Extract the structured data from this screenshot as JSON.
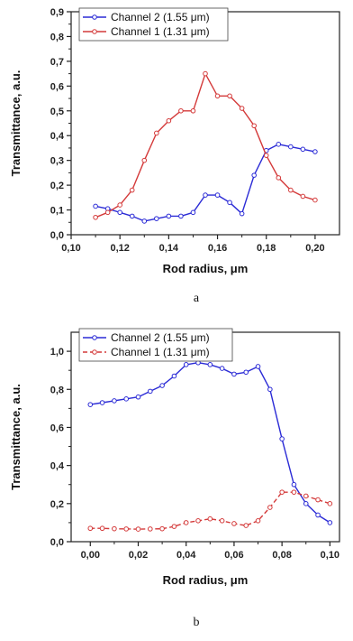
{
  "chart_data": [
    {
      "type": "line",
      "panel_label": "a",
      "xlabel": "Rod radius, μm",
      "ylabel": "Transmittance, a.u.",
      "xlim": [
        0.1,
        0.21
      ],
      "ylim": [
        0.0,
        0.9
      ],
      "xticks": [
        0.1,
        0.12,
        0.14,
        0.16,
        0.18,
        0.2
      ],
      "xtick_labels": [
        "0,10",
        "0,12",
        "0,14",
        "0,16",
        "0,18",
        "0,20"
      ],
      "yticks": [
        0.0,
        0.1,
        0.2,
        0.3,
        0.4,
        0.5,
        0.6,
        0.7,
        0.8,
        0.9
      ],
      "ytick_labels": [
        "0,0",
        "0,1",
        "0,2",
        "0,3",
        "0,4",
        "0,5",
        "0,6",
        "0,7",
        "0,8",
        "0,9"
      ],
      "grid": false,
      "legend": "top-left",
      "series": [
        {
          "name": "Channel 2 (1.55 μm)",
          "color": "#2b2bd6",
          "style": "solid",
          "x": [
            0.11,
            0.115,
            0.12,
            0.125,
            0.13,
            0.135,
            0.14,
            0.145,
            0.15,
            0.155,
            0.16,
            0.165,
            0.17,
            0.175,
            0.18,
            0.185,
            0.19,
            0.195,
            0.2
          ],
          "y": [
            0.115,
            0.105,
            0.09,
            0.075,
            0.055,
            0.065,
            0.075,
            0.075,
            0.09,
            0.16,
            0.16,
            0.13,
            0.085,
            0.24,
            0.34,
            0.365,
            0.355,
            0.345,
            0.335
          ]
        },
        {
          "name": "Channel 1 (1.31 μm)",
          "color": "#d43a3a",
          "style": "solid",
          "x": [
            0.11,
            0.115,
            0.12,
            0.125,
            0.13,
            0.135,
            0.14,
            0.145,
            0.15,
            0.155,
            0.16,
            0.165,
            0.17,
            0.175,
            0.18,
            0.185,
            0.19,
            0.195,
            0.2
          ],
          "y": [
            0.07,
            0.09,
            0.12,
            0.18,
            0.3,
            0.41,
            0.46,
            0.5,
            0.5,
            0.65,
            0.56,
            0.56,
            0.51,
            0.44,
            0.32,
            0.23,
            0.18,
            0.155,
            0.14
          ]
        }
      ]
    },
    {
      "type": "line",
      "panel_label": "b",
      "xlabel": "Rod radius, μm",
      "ylabel": "Transmittance, a.u.",
      "xlim": [
        -0.008,
        0.104
      ],
      "ylim": [
        0.0,
        1.1
      ],
      "xticks": [
        0.0,
        0.02,
        0.04,
        0.06,
        0.08,
        0.1
      ],
      "xtick_labels": [
        "0,00",
        "0,02",
        "0,04",
        "0,06",
        "0,08",
        "0,10"
      ],
      "yticks": [
        0.0,
        0.2,
        0.4,
        0.6,
        0.8,
        1.0
      ],
      "ytick_labels": [
        "0,0",
        "0,2",
        "0,4",
        "0,6",
        "0,8",
        "1,0"
      ],
      "grid": false,
      "legend": "top-left",
      "series": [
        {
          "name": "Channel 2 (1.55 μm)",
          "color": "#2b2bd6",
          "style": "solid",
          "x": [
            0.0,
            0.005,
            0.01,
            0.015,
            0.02,
            0.025,
            0.03,
            0.035,
            0.04,
            0.045,
            0.05,
            0.055,
            0.06,
            0.065,
            0.07,
            0.075,
            0.08,
            0.085,
            0.09,
            0.095,
            0.1
          ],
          "y": [
            0.72,
            0.73,
            0.74,
            0.75,
            0.76,
            0.79,
            0.82,
            0.87,
            0.93,
            0.94,
            0.93,
            0.91,
            0.88,
            0.89,
            0.92,
            0.8,
            0.54,
            0.3,
            0.2,
            0.14,
            0.1
          ]
        },
        {
          "name": "Channel 1 (1.31 μm)",
          "color": "#d43a3a",
          "style": "dashed",
          "x": [
            0.0,
            0.005,
            0.01,
            0.015,
            0.02,
            0.025,
            0.03,
            0.035,
            0.04,
            0.045,
            0.05,
            0.055,
            0.06,
            0.065,
            0.07,
            0.075,
            0.08,
            0.085,
            0.09,
            0.095,
            0.1
          ],
          "y": [
            0.07,
            0.07,
            0.068,
            0.067,
            0.066,
            0.067,
            0.068,
            0.08,
            0.1,
            0.11,
            0.12,
            0.11,
            0.095,
            0.085,
            0.11,
            0.18,
            0.26,
            0.26,
            0.24,
            0.22,
            0.2
          ]
        }
      ]
    }
  ]
}
